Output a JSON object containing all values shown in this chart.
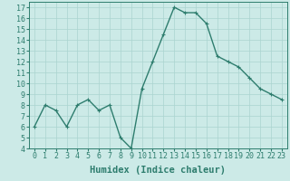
{
  "x": [
    0,
    1,
    2,
    3,
    4,
    5,
    6,
    7,
    8,
    9,
    10,
    11,
    12,
    13,
    14,
    15,
    16,
    17,
    18,
    19,
    20,
    21,
    22,
    23
  ],
  "y": [
    6,
    8,
    7.5,
    6,
    8,
    8.5,
    7.5,
    8,
    5,
    4,
    9.5,
    12,
    14.5,
    17,
    16.5,
    16.5,
    15.5,
    12.5,
    12,
    11.5,
    10.5,
    9.5,
    9,
    8.5
  ],
  "line_color": "#2e7d6e",
  "marker": "+",
  "bg_color": "#cceae7",
  "plot_bg_color": "#cceae7",
  "grid_color": "#aad4d0",
  "xlabel": "Humidex (Indice chaleur)",
  "ylim": [
    4,
    17.5
  ],
  "xlim": [
    -0.5,
    23.5
  ],
  "yticks": [
    4,
    5,
    6,
    7,
    8,
    9,
    10,
    11,
    12,
    13,
    14,
    15,
    16,
    17
  ],
  "xticks": [
    0,
    1,
    2,
    3,
    4,
    5,
    6,
    7,
    8,
    9,
    10,
    11,
    12,
    13,
    14,
    15,
    16,
    17,
    18,
    19,
    20,
    21,
    22,
    23
  ],
  "tick_fontsize": 6,
  "xlabel_fontsize": 7.5,
  "marker_size": 3.5,
  "line_width": 1.0
}
